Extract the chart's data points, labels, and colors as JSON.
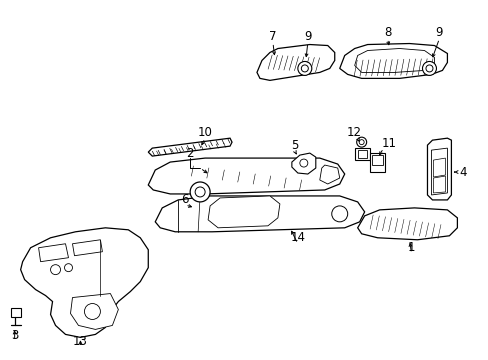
{
  "background_color": "#ffffff",
  "figsize": [
    4.89,
    3.6
  ],
  "dpi": 100,
  "label_fontsize": 8.5
}
